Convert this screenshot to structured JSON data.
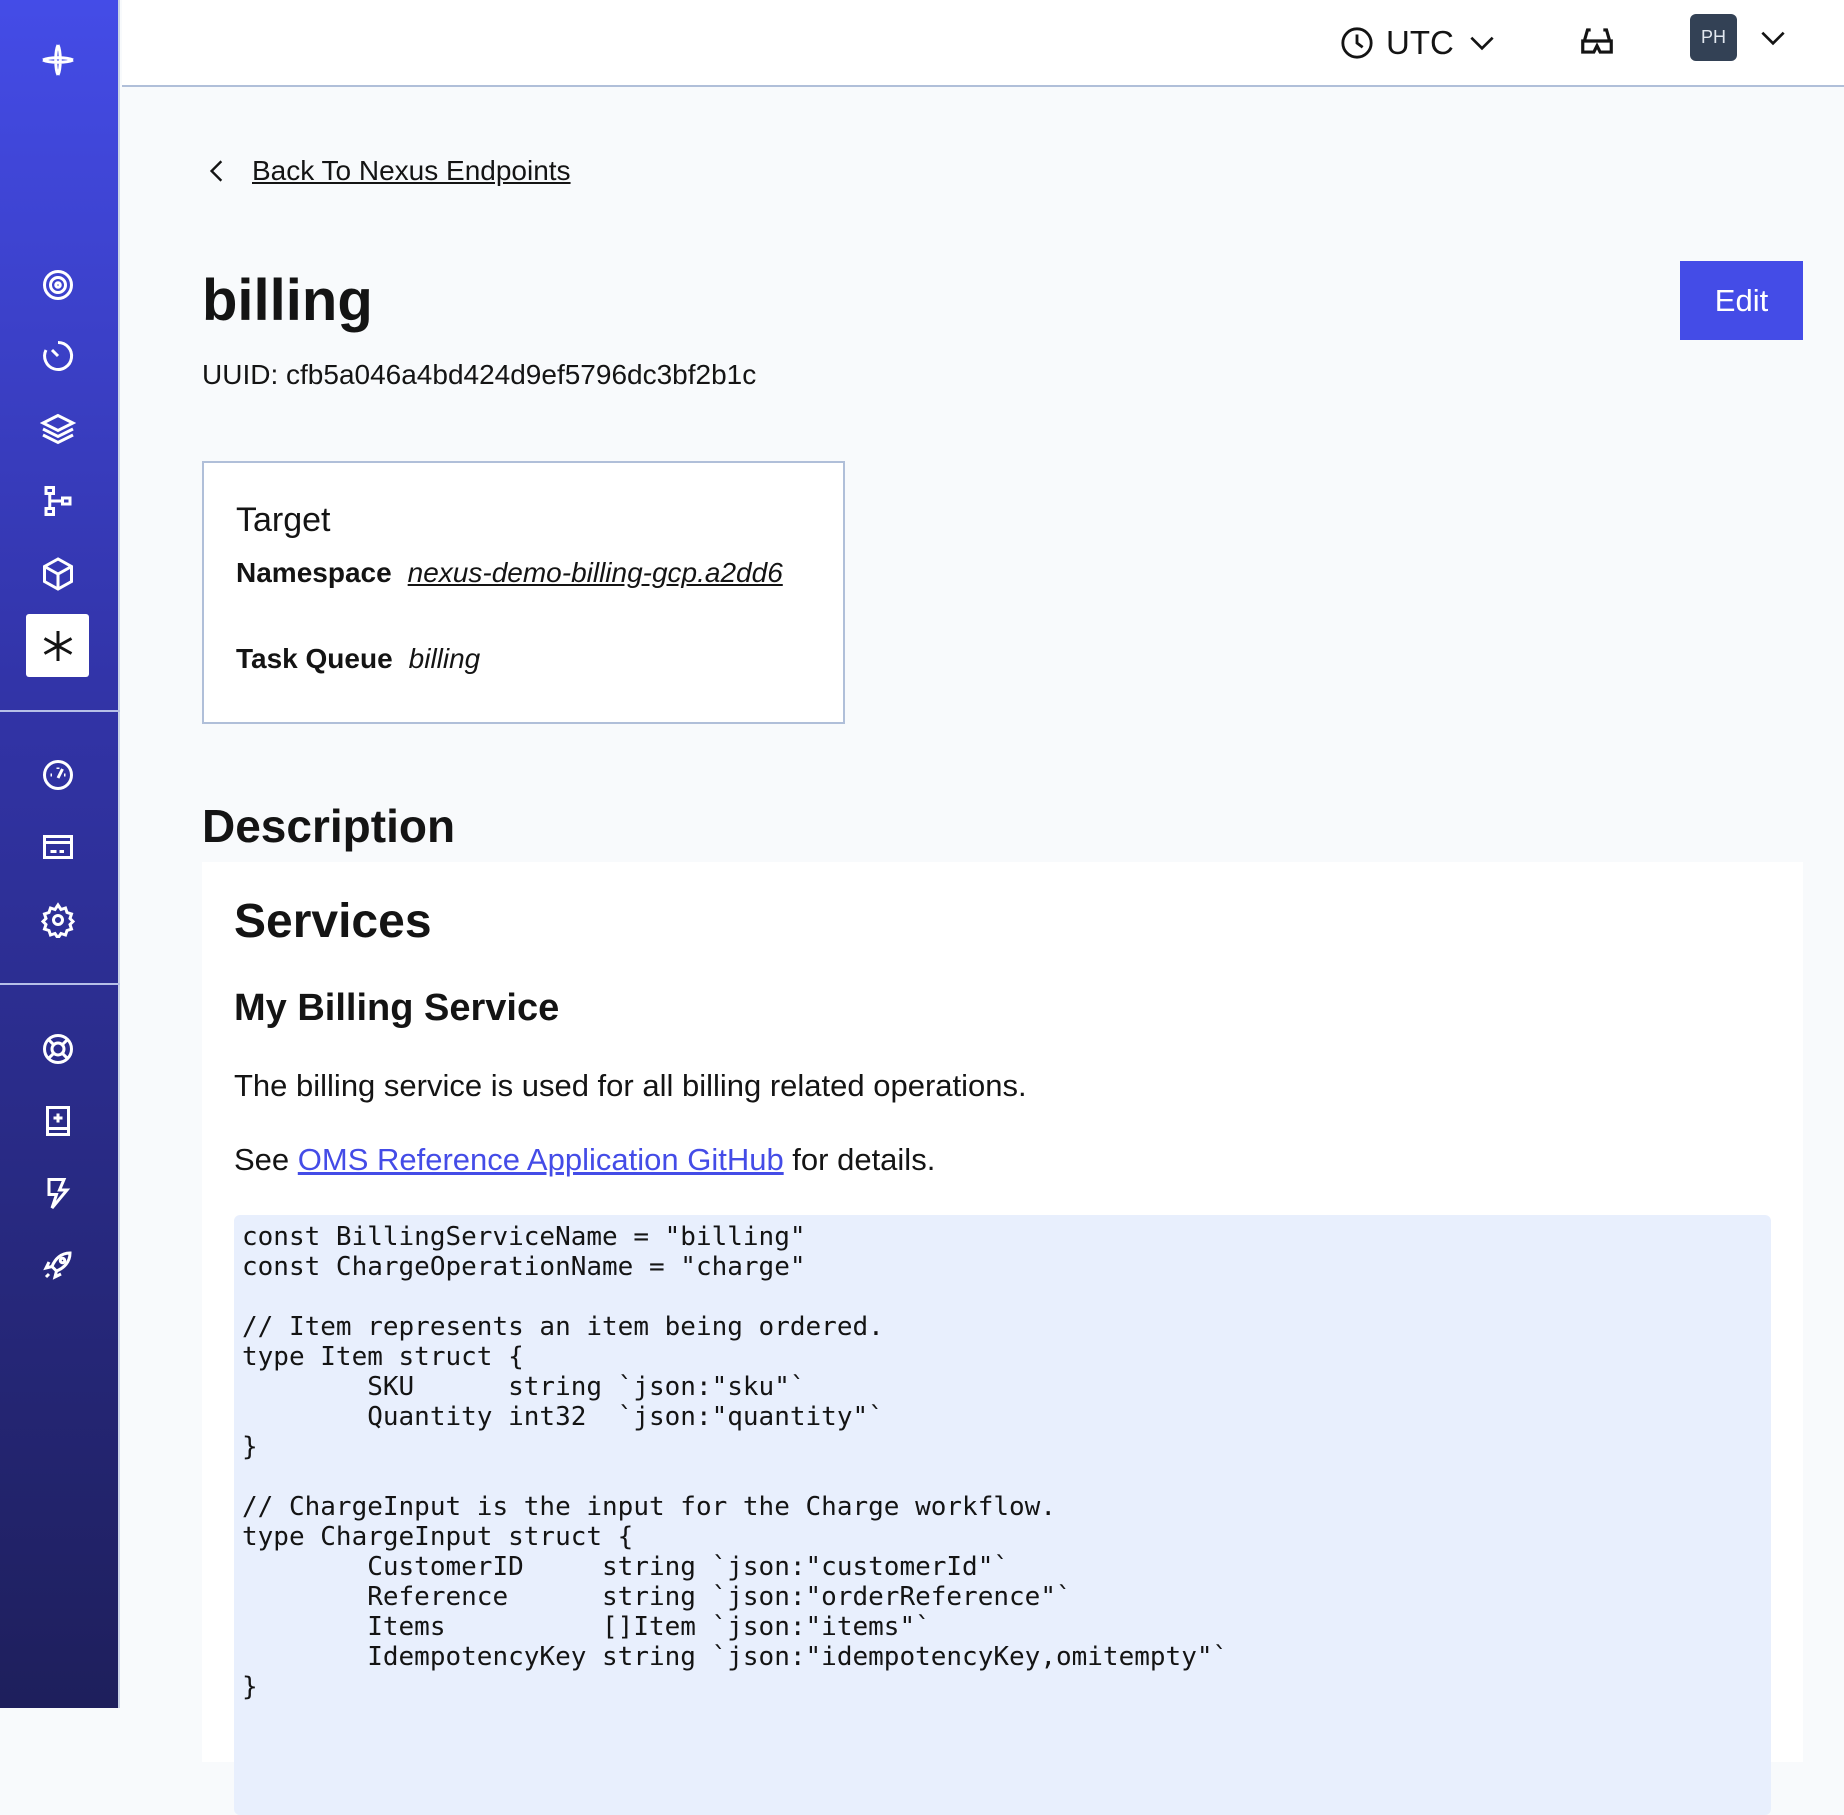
{
  "sidebar": {
    "items": [
      {
        "icon": "logo-icon"
      },
      {
        "icon": "workflows-icon"
      },
      {
        "icon": "schedules-icon"
      },
      {
        "icon": "namespaces-icon"
      },
      {
        "icon": "deployments-icon"
      },
      {
        "icon": "archive-icon"
      },
      {
        "icon": "nexus-icon",
        "active": true
      },
      {
        "icon": "usage-icon"
      },
      {
        "icon": "billing-icon"
      },
      {
        "icon": "settings-icon"
      },
      {
        "icon": "support-icon"
      },
      {
        "icon": "docs-icon"
      },
      {
        "icon": "feedback-icon"
      },
      {
        "icon": "get-started-icon"
      }
    ]
  },
  "header": {
    "timezone": "UTC",
    "avatar_initials": "PH"
  },
  "back_link": "Back To Nexus Endpoints",
  "endpoint": {
    "name": "billing",
    "uuid_label": "UUID:",
    "uuid": "cfb5a046a4bd424d9ef5796dc3bf2b1c",
    "edit_label": "Edit"
  },
  "target": {
    "title": "Target",
    "namespace_label": "Namespace",
    "namespace": "nexus-demo-billing-gcp.a2dd6",
    "task_queue_label": "Task Queue",
    "task_queue": "billing"
  },
  "description": {
    "heading": "Description",
    "h1": "Services",
    "h2": "My Billing Service",
    "para": "The billing service is used for all billing related operations.",
    "see_prefix": "See ",
    "see_link": "OMS Reference Application GitHub",
    "see_suffix": " for details.",
    "code": "const BillingServiceName = \"billing\"\nconst ChargeOperationName = \"charge\"\n\n// Item represents an item being ordered.\ntype Item struct {\n        SKU      string `json:\"sku\"`\n        Quantity int32  `json:\"quantity\"`\n}\n\n// ChargeInput is the input for the Charge workflow.\ntype ChargeInput struct {\n        CustomerID     string `json:\"customerId\"`\n        Reference      string `json:\"orderReference\"`\n        Items          []Item `json:\"items\"`\n        IdempotencyKey string `json:\"idempotencyKey,omitempty\"`\n}"
  },
  "colors": {
    "accent": "#444ce7",
    "link": "#444ce7",
    "code_bg": "#e8effd",
    "avatar_bg": "#334155"
  }
}
